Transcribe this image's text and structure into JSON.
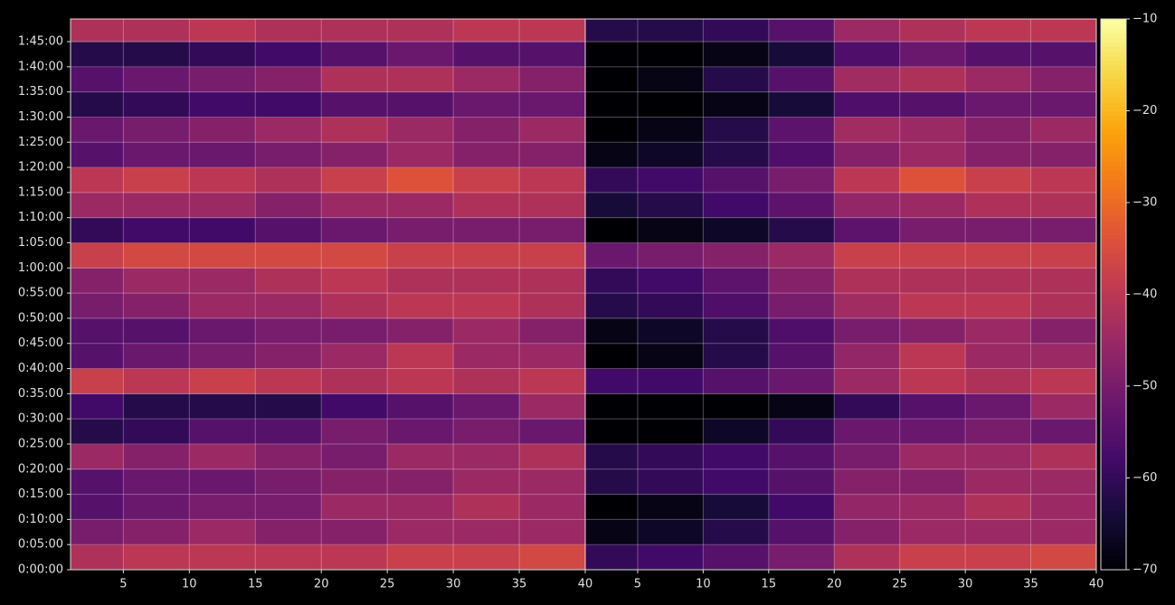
{
  "chart_data": [
    {
      "type": "heatmap",
      "x_bins": [
        1,
        5,
        10,
        15,
        20,
        25,
        30,
        35,
        40
      ],
      "y_bins": [
        0,
        5,
        10,
        15,
        20,
        25,
        30,
        35,
        40,
        45,
        50,
        55,
        60,
        65,
        70,
        75,
        80,
        85,
        90,
        95,
        100,
        105,
        109.5
      ],
      "xlim": [
        1,
        40
      ],
      "xticks": [
        5,
        10,
        15,
        20,
        25,
        30,
        35,
        40
      ],
      "ylim": [
        0,
        109.5
      ],
      "yticks": [
        {
          "value": 0,
          "label": "0:00:00"
        },
        {
          "value": 5,
          "label": "0:05:00"
        },
        {
          "value": 10,
          "label": "0:10:00"
        },
        {
          "value": 15,
          "label": "0:15:00"
        },
        {
          "value": 20,
          "label": "0:20:00"
        },
        {
          "value": 25,
          "label": "0:25:00"
        },
        {
          "value": 30,
          "label": "0:30:00"
        },
        {
          "value": 35,
          "label": "0:35:00"
        },
        {
          "value": 40,
          "label": "0:40:00"
        },
        {
          "value": 45,
          "label": "0:45:00"
        },
        {
          "value": 50,
          "label": "0:50:00"
        },
        {
          "value": 55,
          "label": "0:55:00"
        },
        {
          "value": 60,
          "label": "1:00:00"
        },
        {
          "value": 65,
          "label": "1:05:00"
        },
        {
          "value": 70,
          "label": "1:10:00"
        },
        {
          "value": 75,
          "label": "1:15:00"
        },
        {
          "value": 80,
          "label": "1:20:00"
        },
        {
          "value": 85,
          "label": "1:25:00"
        },
        {
          "value": 90,
          "label": "1:30:00"
        },
        {
          "value": 95,
          "label": "1:35:00"
        },
        {
          "value": 100,
          "label": "1:40:00"
        },
        {
          "value": 105,
          "label": "1:45:00"
        }
      ],
      "grid": true,
      "colorbar": {
        "cmap": "inferno",
        "clim": [
          -70,
          -10
        ],
        "ticks": [
          {
            "value": -10,
            "label": "−10"
          },
          {
            "value": -20,
            "label": "−20"
          },
          {
            "value": -30,
            "label": "−30"
          },
          {
            "value": -40,
            "label": "−40"
          },
          {
            "value": -50,
            "label": "−50"
          },
          {
            "value": -60,
            "label": "−60"
          },
          {
            "value": -70,
            "label": "−70"
          }
        ]
      },
      "values": [
        [
          -42,
          -40,
          -40,
          -40,
          -40,
          -38,
          -38,
          -36
        ],
        [
          -50,
          -48,
          -45,
          -48,
          -48,
          -45,
          -45,
          -45
        ],
        [
          -55,
          -52,
          -50,
          -50,
          -45,
          -45,
          -42,
          -45
        ],
        [
          -55,
          -52,
          -52,
          -50,
          -48,
          -48,
          -45,
          -45
        ],
        [
          -45,
          -48,
          -45,
          -48,
          -50,
          -45,
          -45,
          -42
        ],
        [
          -62,
          -60,
          -55,
          -55,
          -50,
          -52,
          -50,
          -52
        ],
        [
          -58,
          -62,
          -62,
          -62,
          -58,
          -55,
          -52,
          -45
        ],
        [
          -38,
          -40,
          -38,
          -40,
          -42,
          -40,
          -42,
          -40
        ],
        [
          -55,
          -52,
          -50,
          -48,
          -45,
          -40,
          -45,
          -45
        ],
        [
          -55,
          -55,
          -52,
          -50,
          -50,
          -48,
          -45,
          -48
        ],
        [
          -50,
          -48,
          -45,
          -45,
          -42,
          -40,
          -40,
          -42
        ],
        [
          -48,
          -45,
          -45,
          -42,
          -40,
          -42,
          -42,
          -42
        ],
        [
          -38,
          -36,
          -36,
          -36,
          -36,
          -38,
          -38,
          -38
        ],
        [
          -60,
          -58,
          -58,
          -55,
          -52,
          -50,
          -50,
          -50
        ],
        [
          -45,
          -45,
          -45,
          -48,
          -45,
          -45,
          -42,
          -42
        ],
        [
          -40,
          -38,
          -40,
          -42,
          -38,
          -34,
          -38,
          -40
        ],
        [
          -55,
          -52,
          -52,
          -50,
          -48,
          -45,
          -48,
          -48
        ],
        [
          -52,
          -50,
          -48,
          -45,
          -42,
          -45,
          -48,
          -45
        ],
        [
          -62,
          -60,
          -58,
          -58,
          -55,
          -55,
          -52,
          -52
        ],
        [
          -55,
          -52,
          -50,
          -48,
          -42,
          -42,
          -45,
          -48
        ],
        [
          -62,
          -62,
          -60,
          -58,
          -55,
          -52,
          -55,
          -55
        ],
        [
          -42,
          -42,
          -40,
          -42,
          -42,
          -42,
          -40,
          -40
        ]
      ]
    },
    {
      "type": "heatmap",
      "x_bins": [
        1,
        5,
        10,
        15,
        20,
        25,
        30,
        35,
        40
      ],
      "y_bins": [
        0,
        5,
        10,
        15,
        20,
        25,
        30,
        35,
        40,
        45,
        50,
        55,
        60,
        65,
        70,
        75,
        80,
        85,
        90,
        95,
        100,
        105,
        109.5
      ],
      "xlim": [
        1,
        40
      ],
      "xticks": [
        5,
        10,
        15,
        20,
        25,
        30,
        35,
        40
      ],
      "ylim": [
        0,
        109.5
      ],
      "grid": true,
      "values": [
        [
          -60,
          -58,
          -55,
          -50,
          -42,
          -38,
          -38,
          -36
        ],
        [
          -68,
          -66,
          -62,
          -55,
          -48,
          -45,
          -45,
          -45
        ],
        [
          -70,
          -68,
          -64,
          -58,
          -46,
          -45,
          -42,
          -45
        ],
        [
          -62,
          -60,
          -58,
          -55,
          -48,
          -48,
          -45,
          -45
        ],
        [
          -62,
          -60,
          -58,
          -55,
          -50,
          -45,
          -45,
          -42
        ],
        [
          -70,
          -70,
          -66,
          -60,
          -52,
          -52,
          -50,
          -52
        ],
        [
          -70,
          -70,
          -70,
          -68,
          -60,
          -55,
          -52,
          -45
        ],
        [
          -58,
          -58,
          -55,
          -52,
          -45,
          -40,
          -42,
          -40
        ],
        [
          -70,
          -68,
          -62,
          -55,
          -46,
          -40,
          -45,
          -45
        ],
        [
          -68,
          -66,
          -62,
          -56,
          -50,
          -48,
          -45,
          -48
        ],
        [
          -62,
          -60,
          -56,
          -50,
          -44,
          -40,
          -40,
          -42
        ],
        [
          -60,
          -58,
          -54,
          -48,
          -42,
          -42,
          -42,
          -42
        ],
        [
          -52,
          -50,
          -48,
          -45,
          -38,
          -38,
          -38,
          -38
        ],
        [
          -70,
          -68,
          -66,
          -62,
          -54,
          -50,
          -50,
          -50
        ],
        [
          -64,
          -62,
          -58,
          -54,
          -46,
          -45,
          -42,
          -42
        ],
        [
          -60,
          -58,
          -55,
          -50,
          -40,
          -34,
          -38,
          -40
        ],
        [
          -68,
          -66,
          -62,
          -56,
          -48,
          -45,
          -48,
          -48
        ],
        [
          -70,
          -68,
          -62,
          -54,
          -44,
          -45,
          -48,
          -45
        ],
        [
          -70,
          -70,
          -68,
          -64,
          -56,
          -55,
          -52,
          -52
        ],
        [
          -70,
          -68,
          -62,
          -55,
          -44,
          -42,
          -45,
          -48
        ],
        [
          -70,
          -70,
          -68,
          -64,
          -56,
          -52,
          -55,
          -55
        ],
        [
          -62,
          -62,
          -60,
          -55,
          -45,
          -42,
          -40,
          -40
        ]
      ]
    }
  ]
}
